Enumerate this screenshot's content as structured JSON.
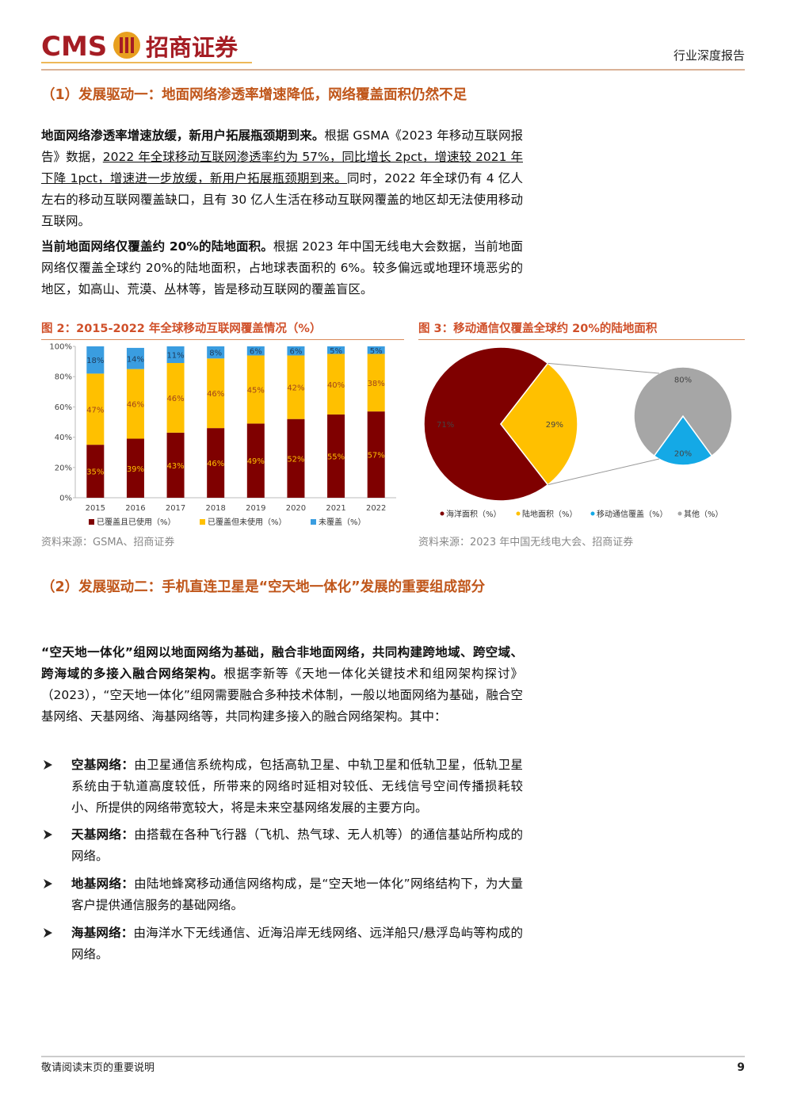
{
  "header": {
    "logo": "CMS",
    "brand": "招商证券",
    "report_type": "行业深度报告"
  },
  "section1": {
    "heading": "（1）发展驱动一：地面网络渗透率增速降低，网络覆盖面积仍然不足",
    "p1": {
      "bold": "地面网络渗透率增速放缓，新用户拓展瓶颈期到来。",
      "text1": "根据 GSMA《2023 年移动互联网报告》数据，",
      "underline": "2022 年全球移动互联网渗透率约为 57%，同比增长 2pct，增速较 2021 年下降 1pct，增速进一步放缓，新用户拓展瓶颈期到来。",
      "text2": "同时，2022 年全球仍有 4 亿人左右的移动互联网覆盖缺口，且有 30 亿人生活在移动互联网覆盖的地区却无法使用移动互联网。"
    },
    "p2": {
      "bold": "当前地面网络仅覆盖约 20%的陆地面积。",
      "text": "根据 2023 年中国无线电大会数据，当前地面网络仅覆盖全球约 20%的陆地面积，占地球表面积的 6%。较多偏远或地理环境恶劣的地区，如高山、荒漠、丛林等，皆是移动互联网的覆盖盲区。"
    }
  },
  "chart_data": [
    {
      "type": "stacked_bar",
      "title": "图 2：2015-2022 年全球移动互联网覆盖情况（%）",
      "categories": [
        "2015",
        "2016",
        "2017",
        "2018",
        "2019",
        "2020",
        "2021",
        "2022"
      ],
      "series": [
        {
          "name": "已覆盖且已使用（%）",
          "color": "#7f0000",
          "values": [
            35,
            39,
            43,
            46,
            49,
            52,
            55,
            57
          ],
          "value_labels": [
            "35%",
            "39%",
            "43%",
            "46%",
            "49%",
            "52%",
            "55%",
            "57%"
          ]
        },
        {
          "name": "已覆盖但未使用（%）",
          "color": "#ffc000",
          "values": [
            47,
            46,
            46,
            46,
            45,
            42,
            40,
            38
          ],
          "value_labels": [
            "47%",
            "46%",
            "46%",
            "46%",
            "45%",
            "42%",
            "40%",
            "38%"
          ]
        },
        {
          "name": "未覆盖（%）",
          "color": "#3a9de0",
          "values": [
            18,
            14,
            11,
            8,
            6,
            6,
            5,
            5
          ],
          "value_labels": [
            "18%",
            "14%",
            "11%",
            "8%",
            "6%",
            "6%",
            "5%",
            "5%"
          ]
        }
      ],
      "ylim": [
        0,
        100
      ],
      "yticks": [
        {
          "value": 0,
          "label": "0%"
        },
        {
          "value": 20,
          "label": "20%"
        },
        {
          "value": 40,
          "label": "40%"
        },
        {
          "value": 60,
          "label": "60%"
        },
        {
          "value": 80,
          "label": "80%"
        },
        {
          "value": 100,
          "label": "100%"
        }
      ],
      "source": "资料来源：GSMA、招商证券"
    },
    {
      "type": "pie_of_pie",
      "title": "图 3：移动通信仅覆盖全球约 20%的陆地面积",
      "pies": [
        {
          "categories": [
            "海洋面积（%）",
            "陆地面积（%）"
          ],
          "values": [
            71,
            29
          ],
          "value_labels": [
            "71%",
            "29%"
          ],
          "colors": [
            "#7f0000",
            "#ffc000"
          ]
        },
        {
          "categories": [
            "移动通信覆盖（%）",
            "其他（%）"
          ],
          "values": [
            20,
            80
          ],
          "value_labels": [
            "20%",
            "80%"
          ],
          "colors": [
            "#14a9e6",
            "#a6a6a6"
          ]
        }
      ],
      "source": "资料来源：2023 年中国无线电大会、招商证券"
    }
  ],
  "section2": {
    "heading": "（2）发展驱动二：手机直连卫星是“空天地一体化”发展的重要组成部分",
    "p": {
      "bold": "“空天地一体化”组网以地面网络为基础，融合非地面网络，共同构建跨地域、跨空域、跨海域的多接入融合网络架构。",
      "text": "根据李新等《天地一体化关键技术和组网架构探讨》（2023），“空天地一体化”组网需要融合多种技术体制，一般以地面网络为基础，融合空基网络、天基网络、海基网络等，共同构建多接入的融合网络架构。其中："
    },
    "bullets": [
      {
        "term": "空基网络：",
        "text": "由卫星通信系统构成，包括高轨卫星、中轨卫星和低轨卫星，低轨卫星系统由于轨道高度较低，所带来的网络时延相对较低、无线信号空间传播损耗较小、所提供的网络带宽较大，将是未来空基网络发展的主要方向。"
      },
      {
        "term": "天基网络：",
        "text": "由搭载在各种飞行器（飞机、热气球、无人机等）的通信基站所构成的网络。"
      },
      {
        "term": "地基网络：",
        "text": "由陆地蜂窝移动通信网络构成，是“空天地一体化”网络结构下，为大量客户提供通信服务的基础网络。"
      },
      {
        "term": "海基网络：",
        "text": "由海洋水下无线通信、近海沿岸无线网络、远洋船只/悬浮岛屿等构成的网络。"
      }
    ]
  },
  "footer": {
    "note": "敬请阅读末页的重要说明",
    "page": "9"
  }
}
